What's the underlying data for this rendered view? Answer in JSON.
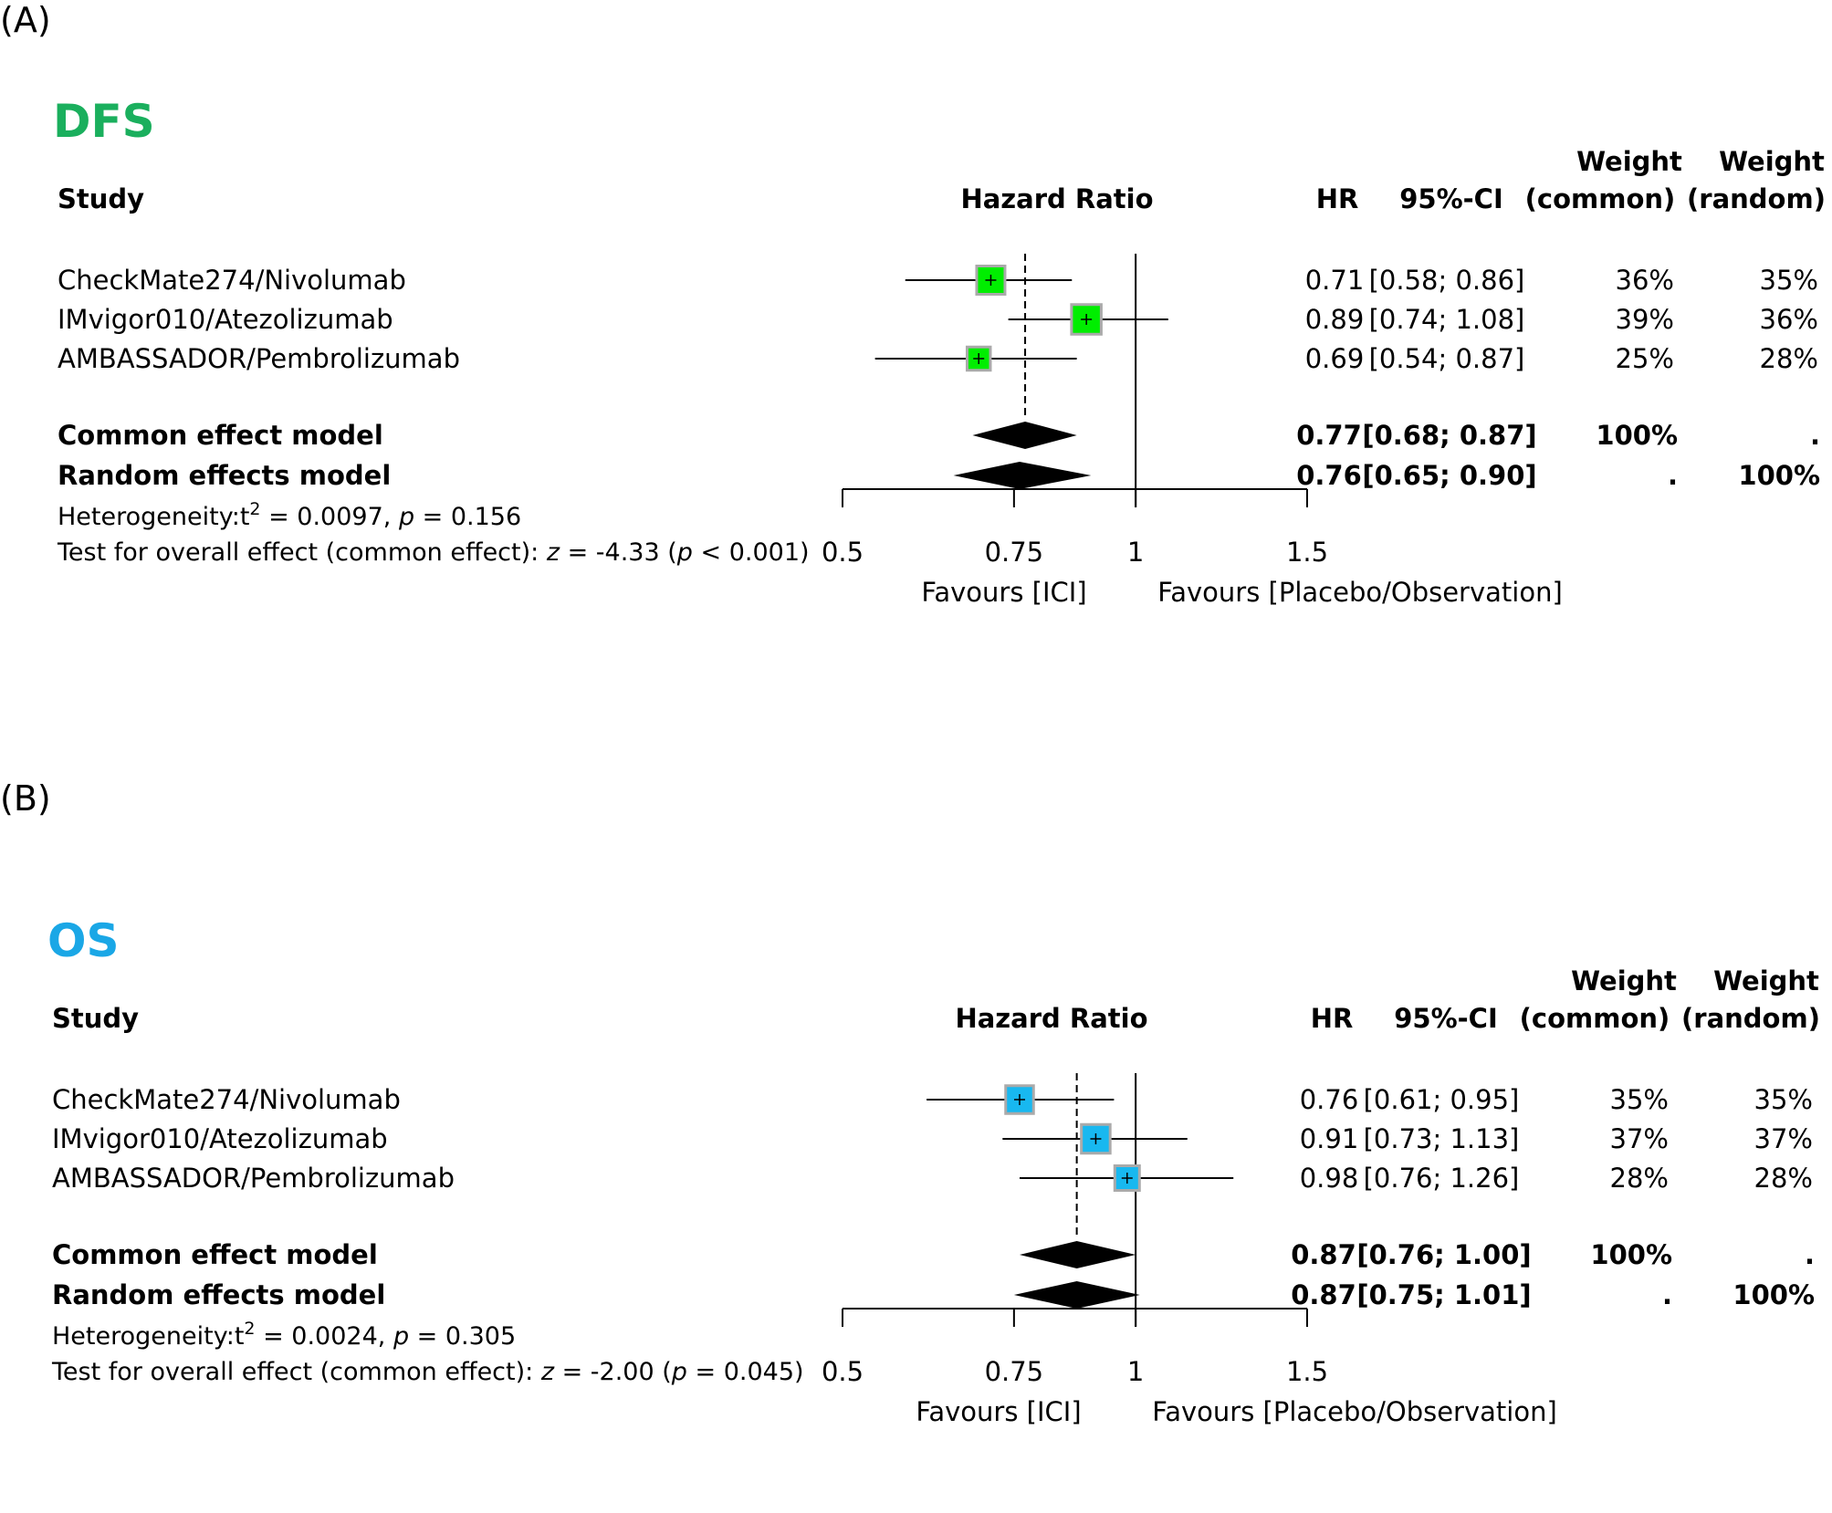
{
  "panels": [
    {
      "tag": "(A)",
      "title": "DFS",
      "title_color": "#1aaf5d",
      "marker_color": "#00ee00",
      "headers": {
        "study": "Study",
        "hazard_ratio": "Hazard Ratio",
        "hr": "HR",
        "ci": "95%-CI",
        "weight1": "Weight",
        "weight1_sub": "(common)",
        "weight2": "Weight",
        "weight2_sub": "(random)"
      },
      "studies": [
        {
          "name": "CheckMate274/Nivolumab",
          "hr": "0.71",
          "ci": "[0.58; 0.86]",
          "w_common": "36%",
          "w_random": "35%"
        },
        {
          "name": "IMvigor010/Atezolizumab",
          "hr": "0.89",
          "ci": "[0.74; 1.08]",
          "w_common": "39%",
          "w_random": "36%"
        },
        {
          "name": "AMBASSADOR/Pembrolizumab",
          "hr": "0.69",
          "ci": "[0.54; 0.87]",
          "w_common": "25%",
          "w_random": "28%"
        }
      ],
      "models": [
        {
          "name": "Common effect model",
          "hr": "0.77",
          "ci": "[0.68; 0.87]",
          "w_common": "100%",
          "w_random": "."
        },
        {
          "name": "Random effects model",
          "hr": "0.76",
          "ci": "[0.65; 0.90]",
          "w_common": ".",
          "w_random": "100%"
        }
      ],
      "heterogeneity": {
        "prefix": "Heterogeneity:",
        "tau": "t",
        "sup": "2",
        "tau_value": " = 0.0097, ",
        "p": "p",
        "p_value": " = 0.156"
      },
      "overall": {
        "prefix": "Test for overall effect (common effect):",
        "z": "z",
        "z_value": " = -4.33 (",
        "p": "p",
        "p_value": " < 0.001)"
      },
      "axis_ticks": [
        "0.5",
        "0.75",
        "1",
        "1.5"
      ],
      "favours_left": "Favours [ICI]",
      "favours_right": "Favours [Placebo/Observation]"
    },
    {
      "tag": "(B)",
      "title": "OS",
      "title_color": "#1aa7e6",
      "marker_color": "#18b8f0",
      "headers": {
        "study": "Study",
        "hazard_ratio": "Hazard Ratio",
        "hr": "HR",
        "ci": "95%-CI",
        "weight1": "Weight",
        "weight1_sub": "(common)",
        "weight2": "Weight",
        "weight2_sub": "(random)"
      },
      "studies": [
        {
          "name": "CheckMate274/Nivolumab",
          "hr": "0.76",
          "ci": "[0.61; 0.95]",
          "w_common": "35%",
          "w_random": "35%"
        },
        {
          "name": "IMvigor010/Atezolizumab",
          "hr": "0.91",
          "ci": "[0.73; 1.13]",
          "w_common": "37%",
          "w_random": "37%"
        },
        {
          "name": "AMBASSADOR/Pembrolizumab",
          "hr": "0.98",
          "ci": "[0.76; 1.26]",
          "w_common": "28%",
          "w_random": "28%"
        }
      ],
      "models": [
        {
          "name": "Common effect model",
          "hr": "0.87",
          "ci": "[0.76; 1.00]",
          "w_common": "100%",
          "w_random": "."
        },
        {
          "name": "Random effects model",
          "hr": "0.87",
          "ci": "[0.75; 1.01]",
          "w_common": ".",
          "w_random": "100%"
        }
      ],
      "heterogeneity": {
        "prefix": "Heterogeneity:",
        "tau": "t",
        "sup": "2",
        "tau_value": " = 0.0024, ",
        "p": "p",
        "p_value": " = 0.305"
      },
      "overall": {
        "prefix": "Test for overall effect (common effect):",
        "z": "z",
        "z_value": " = -2.00 (",
        "p": "p",
        "p_value": " = 0.045)"
      },
      "axis_ticks": [
        "0.5",
        "0.75",
        "1",
        "1.5"
      ],
      "favours_left": "Favours [ICI]",
      "favours_right": "Favours [Placebo/Observation]"
    }
  ],
  "chart_data": [
    {
      "type": "forest",
      "title": "DFS",
      "measure": "Hazard Ratio",
      "x_scale": "log",
      "xlim": [
        0.5,
        1.5
      ],
      "x_ticks": [
        0.5,
        0.75,
        1,
        1.5
      ],
      "reference_line": 1,
      "studies": [
        {
          "name": "CheckMate274/Nivolumab",
          "hr": 0.71,
          "lower": 0.58,
          "upper": 0.86,
          "weight_common": 36,
          "weight_random": 35
        },
        {
          "name": "IMvigor010/Atezolizumab",
          "hr": 0.89,
          "lower": 0.74,
          "upper": 1.08,
          "weight_common": 39,
          "weight_random": 36
        },
        {
          "name": "AMBASSADOR/Pembrolizumab",
          "hr": 0.69,
          "lower": 0.54,
          "upper": 0.87,
          "weight_common": 25,
          "weight_random": 28
        }
      ],
      "pooled": [
        {
          "name": "Common effect model",
          "hr": 0.77,
          "lower": 0.68,
          "upper": 0.87
        },
        {
          "name": "Random effects model",
          "hr": 0.76,
          "lower": 0.65,
          "upper": 0.9
        }
      ]
    },
    {
      "type": "forest",
      "title": "OS",
      "measure": "Hazard Ratio",
      "x_scale": "log",
      "xlim": [
        0.5,
        1.5
      ],
      "x_ticks": [
        0.5,
        0.75,
        1,
        1.5
      ],
      "reference_line": 1,
      "studies": [
        {
          "name": "CheckMate274/Nivolumab",
          "hr": 0.76,
          "lower": 0.61,
          "upper": 0.95,
          "weight_common": 35,
          "weight_random": 35
        },
        {
          "name": "IMvigor010/Atezolizumab",
          "hr": 0.91,
          "lower": 0.73,
          "upper": 1.13,
          "weight_common": 37,
          "weight_random": 37
        },
        {
          "name": "AMBASSADOR/Pembrolizumab",
          "hr": 0.98,
          "lower": 0.76,
          "upper": 1.26,
          "weight_common": 28,
          "weight_random": 28
        }
      ],
      "pooled": [
        {
          "name": "Common effect model",
          "hr": 0.87,
          "lower": 0.76,
          "upper": 1.0
        },
        {
          "name": "Random effects model",
          "hr": 0.87,
          "lower": 0.75,
          "upper": 1.01
        }
      ]
    }
  ]
}
